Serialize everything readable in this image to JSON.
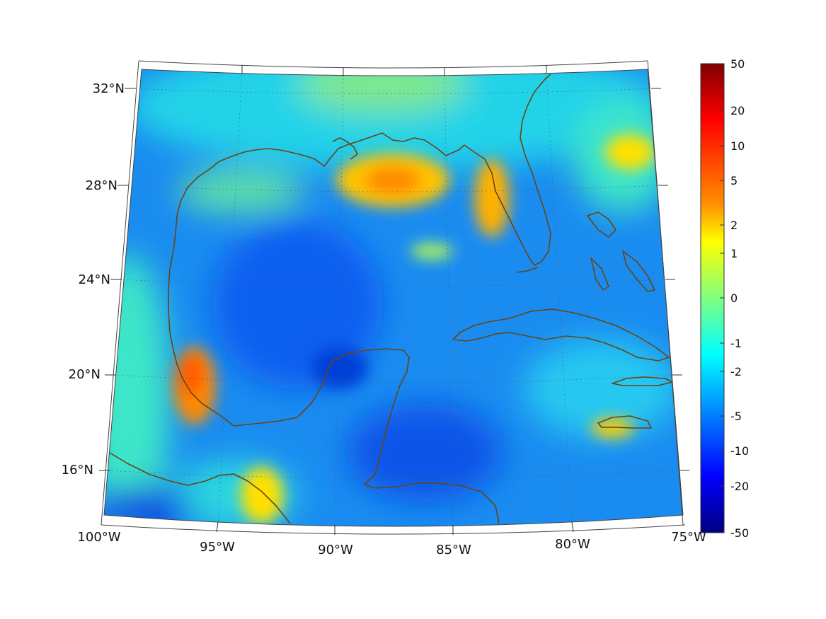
{
  "map": {
    "projection": "conic",
    "lon_range": [
      -100,
      -75
    ],
    "lat_range": [
      14,
      33
    ],
    "lat_labels": [
      "32°N",
      "28°N",
      "24°N",
      "20°N",
      "16°N"
    ],
    "lon_labels": [
      "100°W",
      "95°W",
      "90°W",
      "85°W",
      "80°W",
      "75°W"
    ],
    "coastline_color": "#6b4413",
    "graticule": "dotted"
  },
  "colorbar": {
    "colormap": "jet",
    "scale": "symmetric-log",
    "ticks": [
      "50",
      "20",
      "10",
      "5",
      "2",
      "1",
      "0",
      "-1",
      "-2",
      "-5",
      "-10",
      "-20",
      "-50"
    ]
  }
}
